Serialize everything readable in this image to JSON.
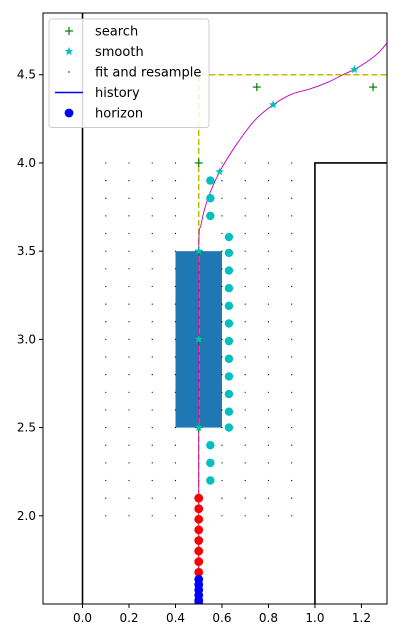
{
  "chart_data": {
    "type": "scatter",
    "xlim": [
      -0.17,
      1.31
    ],
    "ylim": [
      1.5,
      4.85
    ],
    "x_ticks": [
      "0.0",
      "0.2",
      "0.4",
      "0.6",
      "0.8",
      "1.0",
      "1.2"
    ],
    "y_ticks": [
      "2.0",
      "2.5",
      "3.0",
      "3.5",
      "4.0",
      "4.5"
    ],
    "grid": false,
    "legend_position": "top-left",
    "legend": [
      {
        "label": "search",
        "marker": "plus",
        "color": "#008000"
      },
      {
        "label": "smooth",
        "marker": "star",
        "color": "#00bfbf"
      },
      {
        "label": "fit and resample",
        "marker": "dot",
        "color": "#000000"
      },
      {
        "label": "history",
        "marker": "line",
        "color": "#0000ff"
      },
      {
        "label": "horizon",
        "marker": "circle",
        "color": "#0000ff"
      }
    ],
    "colors": {
      "search": "#008000",
      "smooth": "#00bfbf",
      "fit": "#000000",
      "history": "#0000ff",
      "horizon": "#0000ff",
      "trajectory": "#bf00bf",
      "reference": "#bfbf00",
      "obstacle": "#1f77b4",
      "red_points": "#ff0000",
      "cyan_points": "#00bfbf",
      "walls": "#000000"
    },
    "obstacle_rect": {
      "x0": 0.4,
      "x1": 0.6,
      "y0": 2.5,
      "y1": 3.5
    },
    "walls": [
      [
        [
          0,
          1.5
        ],
        [
          0,
          4.85
        ]
      ],
      [
        [
          1.0,
          1.5
        ],
        [
          1.0,
          4.0
        ],
        [
          1.31,
          4.0
        ]
      ]
    ],
    "reference_path": [
      [
        0.5,
        1.5
      ],
      [
        0.5,
        4.5
      ],
      [
        1.31,
        4.5
      ]
    ],
    "search_points": [
      [
        0.5,
        4.0
      ],
      [
        0.75,
        4.43
      ],
      [
        1.25,
        4.43
      ],
      [
        0.5,
        3.5
      ],
      [
        0.5,
        3.0
      ],
      [
        0.5,
        2.5
      ]
    ],
    "smooth_points": [
      [
        0.59,
        3.95
      ],
      [
        0.82,
        4.33
      ],
      [
        1.17,
        4.53
      ],
      [
        0.5,
        3.5
      ],
      [
        0.5,
        3.0
      ],
      [
        0.5,
        2.5
      ]
    ],
    "fit_grid": {
      "x": [
        0.1,
        0.2,
        0.3,
        0.4,
        0.5,
        0.6,
        0.7,
        0.8,
        0.9
      ],
      "y_start": 2.0,
      "y_end": 4.05,
      "y_step": 0.1
    },
    "trajectory": [
      [
        0.5,
        1.5
      ],
      [
        0.5,
        2.5
      ],
      [
        0.5,
        3.5
      ],
      [
        0.51,
        3.65
      ],
      [
        0.54,
        3.8
      ],
      [
        0.59,
        3.95
      ],
      [
        0.66,
        4.1
      ],
      [
        0.74,
        4.24
      ],
      [
        0.82,
        4.33
      ],
      [
        0.9,
        4.39
      ],
      [
        0.98,
        4.42
      ],
      [
        1.06,
        4.46
      ],
      [
        1.12,
        4.5
      ],
      [
        1.17,
        4.53
      ],
      [
        1.22,
        4.57
      ],
      [
        1.27,
        4.62
      ],
      [
        1.31,
        4.68
      ]
    ],
    "red_points": [
      [
        0.5,
        2.1
      ],
      [
        0.5,
        2.04
      ],
      [
        0.5,
        1.98
      ],
      [
        0.5,
        1.92
      ],
      [
        0.5,
        1.86
      ],
      [
        0.5,
        1.8
      ],
      [
        0.5,
        1.74
      ],
      [
        0.5,
        1.68
      ]
    ],
    "horizon_points": [
      [
        0.5,
        1.64
      ],
      [
        0.5,
        1.61
      ],
      [
        0.5,
        1.58
      ],
      [
        0.5,
        1.55
      ],
      [
        0.5,
        1.52
      ],
      [
        0.5,
        1.5
      ]
    ],
    "cyan_points": [
      [
        0.55,
        3.9
      ],
      [
        0.55,
        3.8
      ],
      [
        0.55,
        3.7
      ],
      [
        0.63,
        3.58
      ],
      [
        0.63,
        3.49
      ],
      [
        0.63,
        3.39
      ],
      [
        0.63,
        3.29
      ],
      [
        0.63,
        3.19
      ],
      [
        0.63,
        3.09
      ],
      [
        0.63,
        2.99
      ],
      [
        0.63,
        2.89
      ],
      [
        0.63,
        2.79
      ],
      [
        0.63,
        2.69
      ],
      [
        0.63,
        2.59
      ],
      [
        0.63,
        2.5
      ],
      [
        0.55,
        2.4
      ],
      [
        0.55,
        2.3
      ],
      [
        0.55,
        2.2
      ]
    ]
  }
}
